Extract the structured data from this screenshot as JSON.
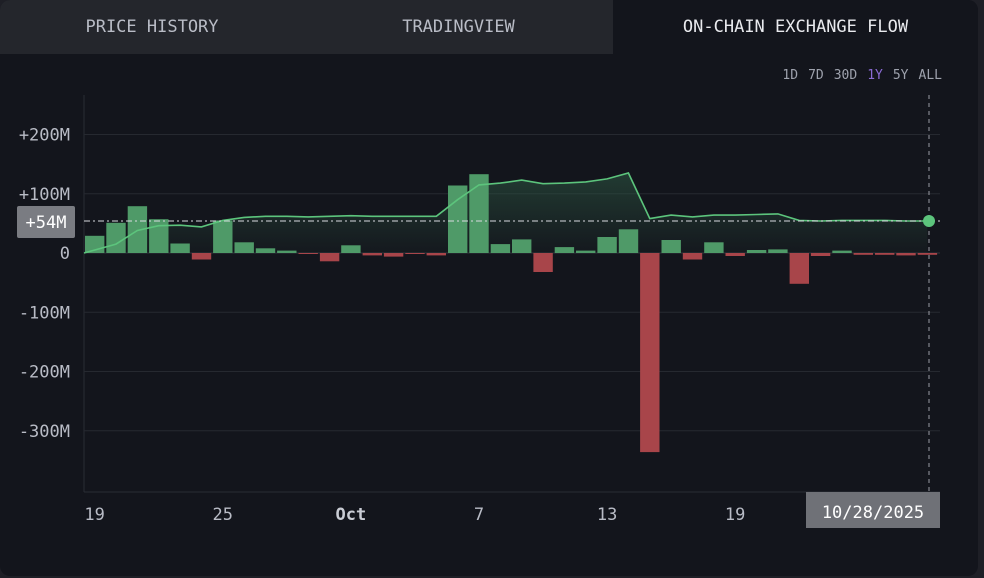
{
  "tabs": [
    {
      "label": "PRICE HISTORY",
      "active": false
    },
    {
      "label": "TRADINGVIEW",
      "active": false
    },
    {
      "label": "ON-CHAIN EXCHANGE FLOW",
      "active": true
    }
  ],
  "ranges": [
    {
      "label": "1D",
      "active": false
    },
    {
      "label": "7D",
      "active": false
    },
    {
      "label": "30D",
      "active": false
    },
    {
      "label": "1Y",
      "active": true
    },
    {
      "label": "5Y",
      "active": false
    },
    {
      "label": "ALL",
      "active": false
    }
  ],
  "colors": {
    "positive": "#4f9a68",
    "negative": "#a8454a",
    "line": "#5cc47c",
    "accent": "#8a6bd4"
  },
  "current_value_label": "+54M",
  "current_date_label": "10/28/2025",
  "chart_data": {
    "type": "bar",
    "title": "",
    "xlabel": "",
    "ylabel": "",
    "ylim": [
      -400,
      265
    ],
    "y_ticks": [
      {
        "value": 200,
        "label": "+200M"
      },
      {
        "value": 100,
        "label": "+100M"
      },
      {
        "value": 0,
        "label": "0"
      },
      {
        "value": -100,
        "label": "-100M"
      },
      {
        "value": -200,
        "label": "-200M"
      },
      {
        "value": -300,
        "label": "-300M"
      }
    ],
    "x_ticks": [
      {
        "index": 0,
        "label": "19",
        "bold": false
      },
      {
        "index": 6,
        "label": "25",
        "bold": false
      },
      {
        "index": 12,
        "label": "Oct",
        "bold": true
      },
      {
        "index": 18,
        "label": "7",
        "bold": false
      },
      {
        "index": 24,
        "label": "13",
        "bold": false
      },
      {
        "index": 30,
        "label": "19",
        "bold": false
      }
    ],
    "grid": true,
    "series": [
      {
        "type": "bar",
        "values": [
          29,
          51,
          79,
          57,
          16,
          -11,
          55,
          18,
          8,
          4,
          -1,
          -14,
          13,
          -4,
          -6,
          -1,
          -4,
          114,
          133,
          15,
          23,
          -32,
          10,
          4,
          27,
          40,
          -336,
          22,
          -11,
          18,
          -5,
          5,
          6,
          -52,
          -5,
          4,
          -3,
          -3,
          -4,
          -3
        ]
      },
      {
        "type": "line",
        "values": [
          0,
          15,
          38,
          46,
          47,
          44,
          55,
          60,
          62,
          62,
          61,
          62,
          63,
          62,
          62,
          62,
          62,
          90,
          115,
          118,
          123,
          117,
          118,
          120,
          125,
          135,
          58,
          64,
          61,
          64,
          64,
          65,
          66,
          55,
          54,
          55,
          55,
          55,
          54,
          54
        ]
      }
    ]
  }
}
